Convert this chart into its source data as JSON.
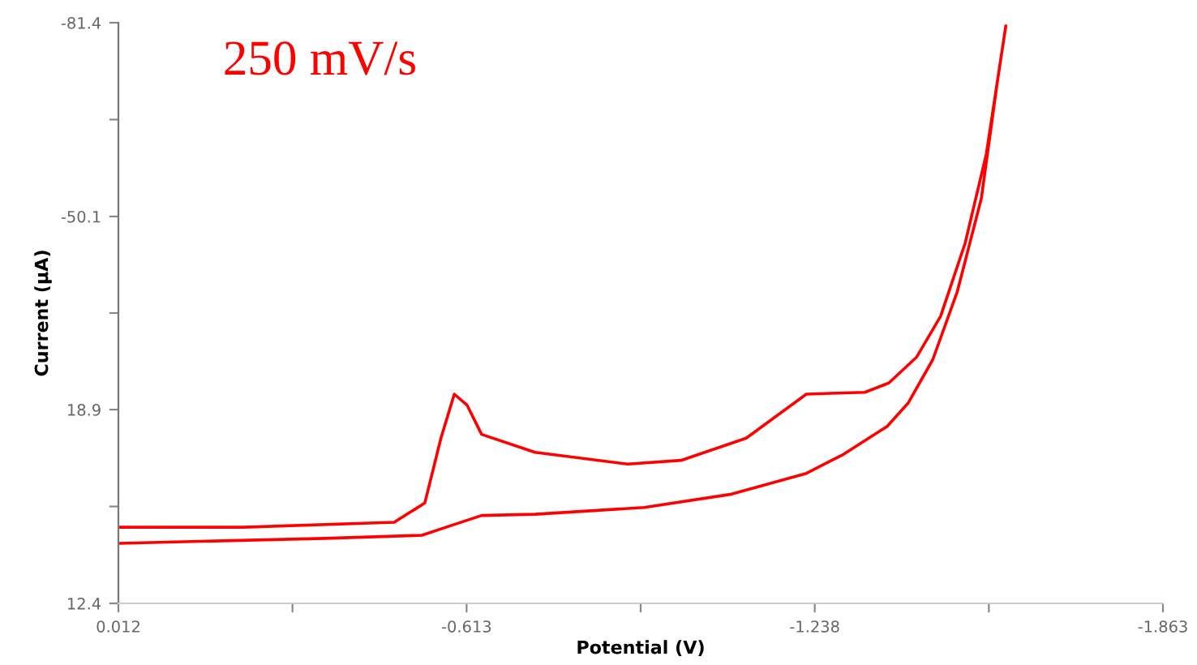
{
  "chart_data": {
    "type": "line",
    "xlabel": "Potential (V)",
    "ylabel": "Current (µA)",
    "annotations": [
      "250 mV/s"
    ],
    "x": [
      0.012,
      -0.212,
      -0.483,
      -0.538,
      -0.567,
      -0.591,
      -0.614,
      -0.64,
      -0.736,
      -0.902,
      -0.998,
      -1.115,
      -1.223,
      -1.328,
      -1.371,
      -1.421,
      -1.464,
      -1.508,
      -1.546,
      -1.581,
      -1.566,
      -1.537,
      -1.494,
      -1.45,
      -1.406,
      -1.368,
      -1.29,
      -1.223,
      -1.086,
      -0.932,
      -0.736,
      -0.64,
      -0.576,
      -0.533,
      -0.358,
      0.012
    ],
    "series": [
      {
        "color": "#ff0000",
        "values": [
          0.1,
          0.1,
          -0.7,
          -3.8,
          -14.3,
          -21.4,
          -19.6,
          -14.9,
          -12.0,
          -10.1,
          -10.7,
          -14.3,
          -21.4,
          -21.7,
          -23.2,
          -27.4,
          -34.0,
          -45.8,
          -60.2,
          -80.9,
          -72.0,
          -53.0,
          -38.0,
          -27.0,
          -20.0,
          -16.2,
          -11.7,
          -8.6,
          -5.2,
          -3.1,
          -2.0,
          -1.8,
          0.1,
          1.4,
          1.9,
          2.7
        ]
      }
    ],
    "xlim": [
      0.012,
      -1.863
    ],
    "xticks": [
      0.012,
      {
        "value": -0.3005,
        "label": null
      },
      -0.613,
      {
        "value": -0.9255,
        "label": null
      },
      -1.238,
      {
        "value": -1.5505,
        "label": null
      },
      -1.863
    ],
    "ylim": [
      12.4,
      -81.4
    ],
    "yticks": [
      12.4,
      {
        "value": -3.25,
        "label": null
      },
      {
        "value": -18.9,
        "label": "18.9"
      },
      {
        "value": -34.5,
        "label": null
      },
      -50.1,
      {
        "value": -65.75,
        "label": null
      },
      -81.4
    ],
    "grid": false,
    "legend": false,
    "marker": "none",
    "line_style": "solid"
  }
}
